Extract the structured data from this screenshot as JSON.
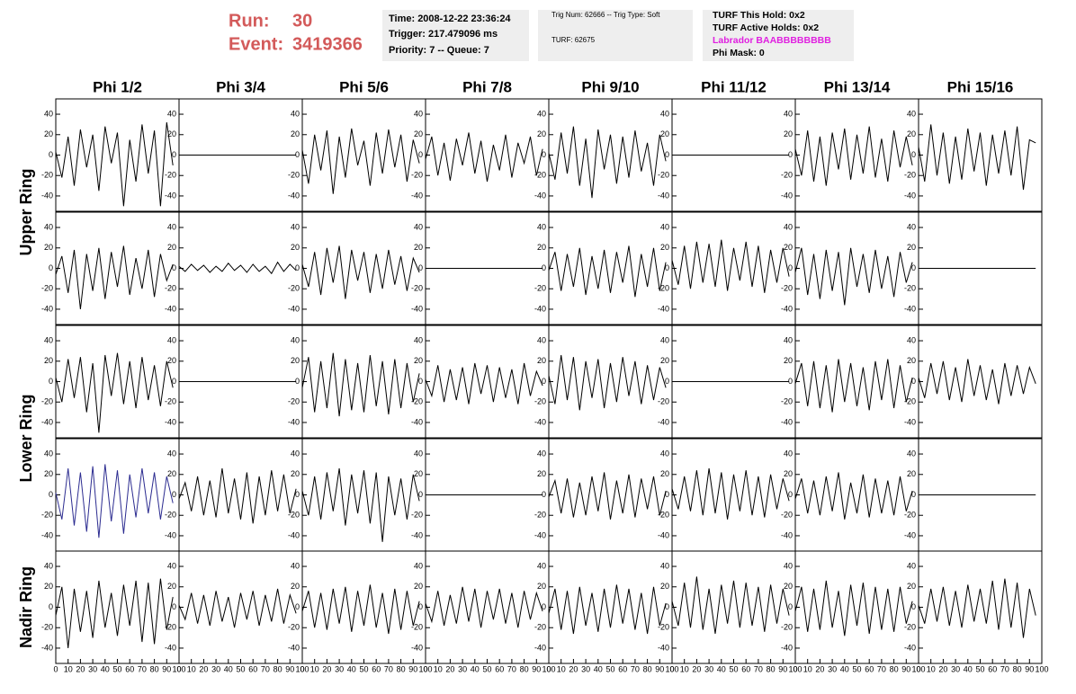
{
  "header": {
    "run_label": "Run:",
    "run": "30",
    "event_label": "Event:",
    "event": "3419366"
  },
  "info": {
    "time": "Time: 2008-12-22 23:36:24",
    "trigger": "Trigger: 217.479096 ms",
    "priority": "Priority: 7 -- Queue: 7",
    "trig": "Trig Num: 62666 -- Trig Type: Soft",
    "turf": "TURF: 62675",
    "hold": "TURF This Hold: 0x2",
    "active": "TURF Active Holds: 0x2",
    "labrador": "Labrador BAABBBBBBBB",
    "phimask": "Phi Mask: 0"
  },
  "columns": [
    "Phi 1/2",
    "Phi 3/4",
    "Phi 5/6",
    "Phi 7/8",
    "Phi 9/10",
    "Phi 11/12",
    "Phi 13/14",
    "Phi 15/16"
  ],
  "rings": [
    "Upper Ring",
    "Lower Ring",
    "Nadir Ring"
  ],
  "plot": {
    "xlim": [
      0,
      100
    ],
    "ylim": [
      -55,
      55
    ],
    "xticks": [
      0,
      10,
      20,
      30,
      40,
      50,
      60,
      70,
      80,
      90,
      100
    ],
    "yticks": [
      -40,
      -20,
      0,
      20,
      40
    ],
    "color": "#000000",
    "x": [
      0,
      5,
      10,
      15,
      20,
      25,
      30,
      35,
      40,
      45,
      50,
      55,
      60,
      65,
      70,
      75,
      80,
      85,
      90,
      95
    ],
    "panels": [
      [
        {
          "values": [
            3,
            -22,
            18,
            -30,
            25,
            -12,
            20,
            -35,
            28,
            -8,
            22,
            -50,
            15,
            -26,
            30,
            -18,
            24,
            -50,
            32,
            -10
          ]
        },
        {
          "values": [
            0,
            0,
            0,
            0,
            0,
            0,
            0,
            0,
            0,
            0,
            0,
            0,
            0,
            0,
            0,
            0,
            0,
            0,
            0,
            0
          ]
        },
        {
          "values": [
            5,
            -28,
            20,
            -15,
            24,
            -38,
            18,
            -22,
            26,
            -10,
            14,
            -30,
            22,
            -18,
            25,
            -12,
            20,
            -26,
            15,
            -8
          ]
        },
        {
          "values": [
            -4,
            18,
            -20,
            12,
            -25,
            16,
            -10,
            22,
            -18,
            14,
            -26,
            10,
            -15,
            20,
            -22,
            12,
            -8,
            18,
            -20,
            6
          ]
        },
        {
          "values": [
            2,
            -24,
            22,
            -18,
            28,
            -30,
            16,
            -42,
            25,
            -14,
            20,
            -28,
            18,
            -22,
            24,
            -16,
            12,
            -30,
            20,
            -6
          ]
        },
        {
          "values": [
            0,
            0,
            0,
            0,
            0,
            0,
            0,
            0,
            0,
            0,
            0,
            0,
            0,
            0,
            0,
            0,
            0,
            0,
            0,
            0
          ]
        },
        {
          "values": [
            6,
            -20,
            24,
            -26,
            18,
            -30,
            22,
            -14,
            26,
            -24,
            20,
            -18,
            28,
            -22,
            16,
            -26,
            24,
            -12,
            18,
            -10
          ]
        },
        {
          "values": [
            8,
            -26,
            30,
            -20,
            22,
            -28,
            18,
            -24,
            26,
            -16,
            22,
            -30,
            20,
            -18,
            24,
            -20,
            28,
            -34,
            15,
            12
          ]
        }
      ],
      [
        {
          "values": [
            -6,
            12,
            -24,
            18,
            -40,
            14,
            -22,
            20,
            -30,
            16,
            -18,
            22,
            -26,
            10,
            -20,
            18,
            -28,
            14,
            -12,
            4
          ]
        },
        {
          "values": [
            2,
            -3,
            4,
            -2,
            3,
            -4,
            2,
            -3,
            5,
            -2,
            3,
            -4,
            4,
            -3,
            2,
            -5,
            6,
            -3,
            4,
            -2
          ]
        },
        {
          "values": [
            4,
            -18,
            16,
            -26,
            20,
            -14,
            22,
            -30,
            18,
            -12,
            16,
            -24,
            14,
            -20,
            18,
            -16,
            12,
            -22,
            10,
            -4
          ]
        },
        {
          "values": [
            0,
            0,
            0,
            0,
            0,
            0,
            0,
            0,
            0,
            0,
            0,
            0,
            0,
            0,
            0,
            0,
            0,
            0,
            0,
            0
          ]
        },
        {
          "values": [
            -2,
            16,
            -22,
            14,
            -18,
            20,
            -26,
            12,
            -20,
            18,
            -24,
            16,
            -14,
            22,
            -28,
            14,
            -18,
            20,
            -22,
            6
          ]
        },
        {
          "values": [
            8,
            -16,
            22,
            -20,
            26,
            -14,
            24,
            -18,
            28,
            -22,
            20,
            -12,
            26,
            -18,
            22,
            -24,
            18,
            -14,
            20,
            -8
          ]
        },
        {
          "values": [
            -4,
            20,
            -26,
            14,
            -30,
            18,
            -22,
            16,
            -36,
            20,
            -18,
            14,
            -24,
            18,
            -20,
            12,
            -28,
            16,
            -14,
            6
          ]
        },
        {
          "values": [
            0,
            0,
            0,
            0,
            0,
            0,
            0,
            0,
            0,
            0,
            0,
            0,
            0,
            0,
            0,
            0,
            0,
            0,
            0,
            0
          ]
        }
      ],
      [
        {
          "values": [
            4,
            -20,
            22,
            -16,
            24,
            -30,
            18,
            -50,
            26,
            -14,
            28,
            -22,
            20,
            -26,
            24,
            -18,
            16,
            -24,
            20,
            -6
          ]
        },
        {
          "values": [
            0,
            0,
            0,
            0,
            0,
            0,
            0,
            0,
            0,
            0,
            0,
            0,
            0,
            0,
            0,
            0,
            0,
            0,
            0,
            0
          ]
        },
        {
          "values": [
            -6,
            24,
            -30,
            20,
            -26,
            28,
            -34,
            22,
            -28,
            18,
            -30,
            26,
            -24,
            20,
            -32,
            22,
            -26,
            18,
            -20,
            8
          ]
        },
        {
          "values": [
            2,
            -14,
            16,
            -20,
            12,
            -18,
            14,
            -22,
            18,
            -12,
            16,
            -20,
            14,
            -16,
            12,
            -22,
            18,
            -14,
            10,
            -4
          ]
        },
        {
          "values": [
            6,
            -22,
            26,
            -18,
            24,
            -28,
            20,
            -16,
            22,
            -26,
            18,
            -20,
            24,
            -14,
            20,
            -22,
            16,
            -18,
            14,
            -6
          ]
        },
        {
          "values": [
            0,
            0,
            0,
            0,
            0,
            0,
            0,
            0,
            0,
            0,
            0,
            0,
            0,
            0,
            0,
            0,
            0,
            0,
            0,
            0
          ]
        },
        {
          "values": [
            -2,
            18,
            -24,
            20,
            -26,
            16,
            -30,
            22,
            -20,
            18,
            -24,
            14,
            -28,
            20,
            -18,
            22,
            -26,
            16,
            -20,
            4
          ]
        },
        {
          "values": [
            4,
            -16,
            18,
            -12,
            20,
            -18,
            14,
            -20,
            22,
            -14,
            16,
            -18,
            12,
            -22,
            18,
            -14,
            16,
            -12,
            14,
            -2
          ]
        }
      ],
      [
        {
          "values": [
            2,
            -24,
            26,
            -30,
            22,
            -36,
            28,
            -42,
            30,
            -26,
            24,
            -38,
            20,
            -22,
            26,
            -18,
            22,
            -24,
            18,
            -8
          ],
          "color": "#2c2c90"
        },
        {
          "values": [
            -4,
            12,
            -16,
            18,
            -20,
            14,
            -22,
            26,
            -18,
            16,
            -24,
            22,
            -28,
            18,
            -20,
            24,
            -16,
            20,
            -18,
            6
          ]
        },
        {
          "values": [
            4,
            -20,
            18,
            -24,
            22,
            -16,
            26,
            -30,
            20,
            -18,
            24,
            -28,
            22,
            -46,
            18,
            -20,
            16,
            -24,
            20,
            -6
          ]
        },
        {
          "values": [
            0,
            0,
            0,
            0,
            0,
            0,
            0,
            0,
            0,
            0,
            0,
            0,
            0,
            0,
            0,
            0,
            0,
            0,
            0,
            0
          ]
        },
        {
          "values": [
            -2,
            14,
            -18,
            16,
            -22,
            12,
            -20,
            18,
            -16,
            22,
            -24,
            14,
            -18,
            20,
            -22,
            16,
            -14,
            18,
            -20,
            4
          ]
        },
        {
          "values": [
            6,
            -14,
            18,
            -16,
            24,
            -20,
            26,
            -18,
            22,
            -24,
            20,
            -16,
            24,
            -20,
            18,
            -22,
            20,
            -14,
            16,
            -6
          ]
        },
        {
          "values": [
            -4,
            16,
            -18,
            14,
            -20,
            18,
            -16,
            22,
            -24,
            12,
            -18,
            20,
            -22,
            16,
            -18,
            14,
            -20,
            18,
            -16,
            4
          ]
        },
        {
          "values": [
            0,
            0,
            0,
            0,
            0,
            0,
            0,
            0,
            0,
            0,
            0,
            0,
            0,
            0,
            0,
            0,
            0,
            0,
            0,
            0
          ]
        }
      ],
      [
        {
          "values": [
            -8,
            20,
            -40,
            18,
            -24,
            16,
            -30,
            26,
            -20,
            14,
            -28,
            22,
            -18,
            26,
            -34,
            24,
            -36,
            28,
            -22,
            10
          ]
        },
        {
          "values": [
            2,
            -12,
            14,
            -16,
            12,
            -18,
            16,
            -14,
            10,
            -20,
            14,
            -12,
            16,
            -18,
            12,
            -14,
            18,
            -16,
            12,
            -6
          ]
        },
        {
          "values": [
            -4,
            16,
            -20,
            14,
            -22,
            18,
            -16,
            20,
            -24,
            16,
            -18,
            22,
            -20,
            14,
            -26,
            18,
            -22,
            16,
            -18,
            6
          ]
        },
        {
          "values": [
            4,
            -14,
            16,
            -18,
            12,
            -16,
            20,
            -14,
            18,
            -20,
            16,
            -12,
            18,
            -16,
            14,
            -20,
            16,
            -12,
            14,
            -4
          ]
        },
        {
          "values": [
            -6,
            18,
            -22,
            16,
            -26,
            20,
            -18,
            14,
            -24,
            18,
            -20,
            22,
            -16,
            18,
            -22,
            14,
            -26,
            20,
            -18,
            4
          ]
        },
        {
          "values": [
            6,
            -18,
            24,
            -20,
            30,
            -22,
            18,
            -26,
            22,
            -16,
            26,
            -20,
            24,
            -18,
            20,
            -24,
            22,
            -16,
            18,
            -8
          ]
        },
        {
          "values": [
            -4,
            20,
            -24,
            18,
            -22,
            26,
            -20,
            16,
            -28,
            22,
            -18,
            24,
            -26,
            20,
            -22,
            18,
            -24,
            20,
            -16,
            6
          ]
        },
        {
          "values": [
            2,
            -16,
            18,
            -14,
            20,
            -18,
            16,
            -20,
            22,
            -14,
            18,
            -16,
            26,
            -22,
            28,
            -20,
            24,
            -30,
            18,
            -8
          ]
        }
      ]
    ]
  }
}
